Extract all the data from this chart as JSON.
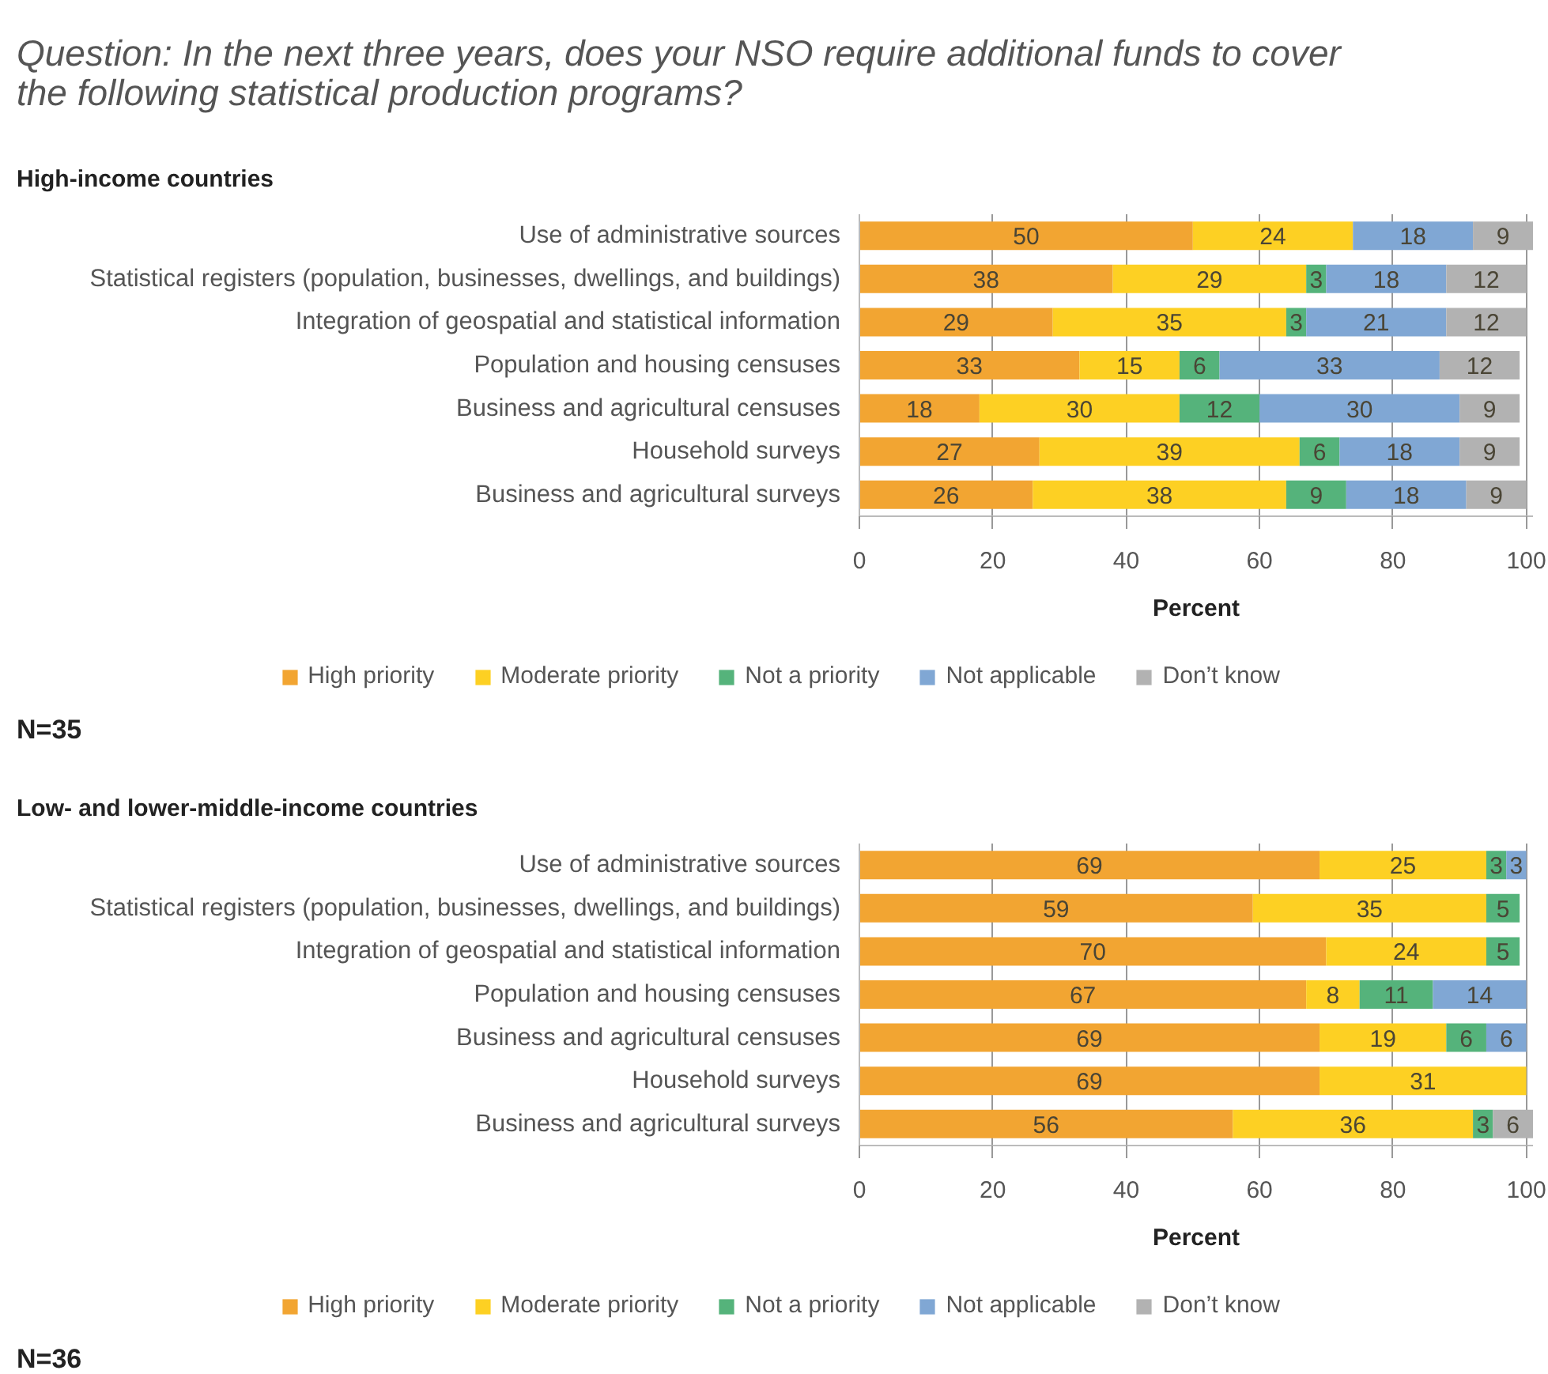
{
  "chart_data": [
    {
      "type": "bar",
      "orientation": "horizontal",
      "stacked": true,
      "title": "Question: In the next three years, does your NSO require additional funds to cover the following statistical production programs?",
      "subtitle": "High-income countries",
      "xlabel": "Percent",
      "categories": [
        "Use of administrative sources",
        "Statistical registers (population, businesses, dwellings, and buildings)",
        "Integration of geospatial and statistical information",
        "Population and housing censuses",
        "Business and agricultural censuses",
        "Household surveys",
        "Business and agricultural surveys"
      ],
      "series": [
        {
          "name": "High priority",
          "color": "#f2a532",
          "values": [
            50,
            38,
            29,
            33,
            18,
            27,
            26
          ]
        },
        {
          "name": "Moderate priority",
          "color": "#fdd023",
          "values": [
            24,
            29,
            35,
            15,
            30,
            39,
            38
          ]
        },
        {
          "name": "Not a priority",
          "color": "#55b37b",
          "values": [
            null,
            3,
            3,
            6,
            12,
            6,
            9
          ]
        },
        {
          "name": "Not applicable",
          "color": "#80a7d4",
          "values": [
            18,
            18,
            21,
            33,
            30,
            18,
            18
          ]
        },
        {
          "name": "Don’t know",
          "color": "#b2b2b2",
          "values": [
            9,
            12,
            12,
            12,
            9,
            9,
            9
          ]
        }
      ],
      "xlim": [
        0,
        101
      ],
      "xticks": [
        0,
        20,
        40,
        60,
        80,
        100
      ],
      "grid": "x",
      "legend": "bottom",
      "data_labels": true,
      "annotations": [
        "N=35"
      ]
    },
    {
      "type": "bar",
      "orientation": "horizontal",
      "stacked": true,
      "subtitle": "Low- and lower-middle-income countries",
      "xlabel": "Percent",
      "categories": [
        "Use of administrative sources",
        "Statistical registers (population, businesses, dwellings, and buildings)",
        "Integration of geospatial and statistical information",
        "Population and housing censuses",
        "Business and agricultural censuses",
        "Household surveys",
        "Business and agricultural surveys"
      ],
      "series": [
        {
          "name": "High priority",
          "color": "#f2a532",
          "values": [
            69,
            59,
            70,
            67,
            69,
            69,
            56
          ]
        },
        {
          "name": "Moderate priority",
          "color": "#fdd023",
          "values": [
            25,
            35,
            24,
            8,
            19,
            31,
            36
          ]
        },
        {
          "name": "Not a priority",
          "color": "#55b37b",
          "values": [
            3,
            5,
            5,
            11,
            6,
            null,
            3
          ]
        },
        {
          "name": "Not applicable",
          "color": "#80a7d4",
          "values": [
            3,
            null,
            null,
            14,
            6,
            null,
            null
          ]
        },
        {
          "name": "Don’t know",
          "color": "#b2b2b2",
          "values": [
            null,
            null,
            null,
            null,
            null,
            null,
            6
          ]
        }
      ],
      "xlim": [
        0,
        101
      ],
      "xticks": [
        0,
        20,
        40,
        60,
        80,
        100
      ],
      "grid": "x",
      "legend": "bottom",
      "data_labels": true,
      "annotations": [
        "N=36"
      ]
    }
  ]
}
